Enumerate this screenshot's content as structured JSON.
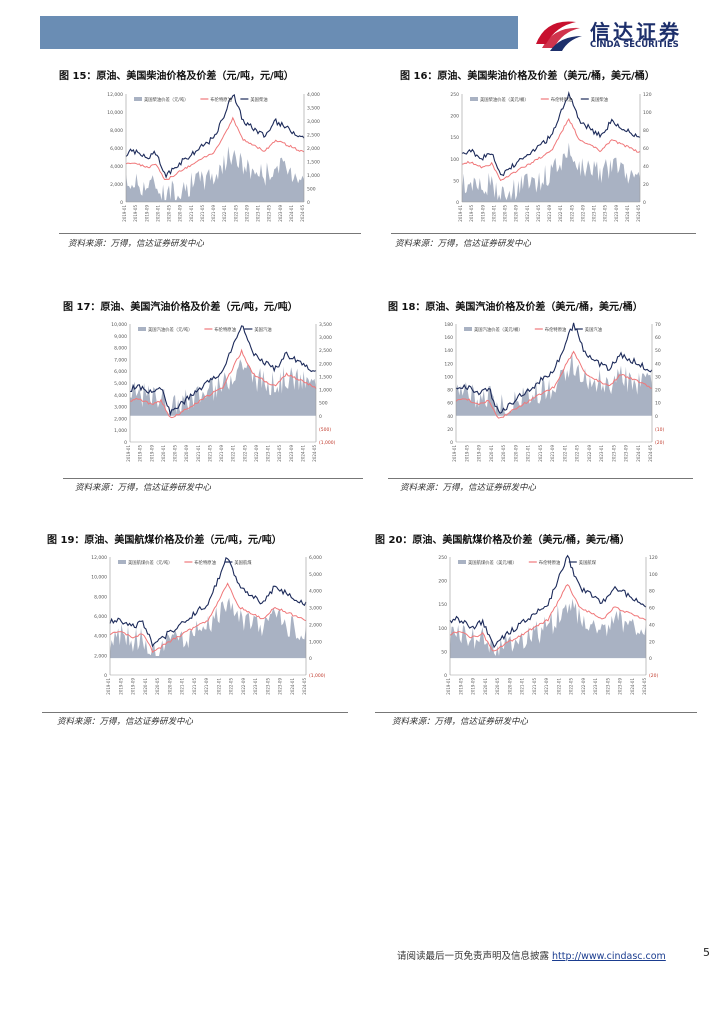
{
  "logo": {
    "cn": "信达证券",
    "en": "CINDA SECURITIES"
  },
  "figures": [
    {
      "title": "图 15：原油、美国柴油价格及价差（元/吨，元/吨）",
      "source": "资料来源：万得，信达证券研发中心",
      "chart_data": {
        "type": "area+line",
        "series": [
          {
            "name": "美国柴油价差（元/吨）"
          },
          {
            "name": "布伦特原油"
          },
          {
            "name": "美国柴油"
          }
        ],
        "y_left": [
          "12,000",
          "10,000",
          "8,000",
          "6,000",
          "4,000",
          "2,000",
          "0"
        ],
        "y_right": [
          "4,000",
          "3,500",
          "3,000",
          "2,500",
          "2,000",
          "1,500",
          "1,000",
          "500",
          "0"
        ],
        "x_ticks": [
          "2019-01",
          "2019-05",
          "2019-09",
          "2020-01",
          "2020-05",
          "2020-09",
          "2021-01",
          "2021-05",
          "2021-09",
          "2022-01",
          "2022-05",
          "2022-09",
          "2023-01",
          "2023-05",
          "2023-09",
          "2024-01",
          "2024-05"
        ]
      }
    },
    {
      "title": "图 16：原油、美国柴油价格及价差（美元/桶，美元/桶）",
      "source": "资料来源：万得，信达证券研发中心",
      "chart_data": {
        "type": "area+line",
        "series": [
          {
            "name": "美国柴油价差（美元/桶）"
          },
          {
            "name": "布伦特原油"
          },
          {
            "name": "美国柴油"
          }
        ],
        "y_left": [
          "250",
          "200",
          "150",
          "100",
          "50",
          "0"
        ],
        "y_right": [
          "120",
          "100",
          "80",
          "60",
          "40",
          "20",
          "0"
        ],
        "x_ticks": [
          "2019-01",
          "2019-05",
          "2019-09",
          "2020-01",
          "2020-05",
          "2020-09",
          "2021-01",
          "2021-05",
          "2021-09",
          "2022-01",
          "2022-05",
          "2022-09",
          "2023-01",
          "2023-05",
          "2023-09",
          "2024-01",
          "2024-05"
        ]
      }
    },
    {
      "title": "图 17：原油、美国汽油价格及价差（元/吨，元/吨）",
      "source": "资料来源：万得，信达证券研发中心",
      "chart_data": {
        "type": "area+line",
        "series": [
          {
            "name": "美国汽油价差（元/吨）"
          },
          {
            "name": "布伦特原油"
          },
          {
            "name": "美国汽油"
          }
        ],
        "y_left": [
          "10,000",
          "9,000",
          "8,000",
          "7,000",
          "6,000",
          "5,000",
          "4,000",
          "3,000",
          "2,000",
          "1,000",
          "0"
        ],
        "y_right": [
          "3,500",
          "3,000",
          "2,500",
          "2,000",
          "1,500",
          "1,000",
          "500",
          "0",
          "(500)",
          "(1,000)"
        ],
        "x_ticks": [
          "2019-01",
          "2019-05",
          "2019-09",
          "2020-01",
          "2020-05",
          "2020-09",
          "2021-01",
          "2021-05",
          "2021-09",
          "2022-01",
          "2022-05",
          "2022-09",
          "2023-01",
          "2023-05",
          "2023-09",
          "2024-01",
          "2024-05"
        ]
      }
    },
    {
      "title": "图 18：原油、美国汽油价格及价差（美元/桶，美元/桶）",
      "source": "资料来源：万得，信达证券研发中心",
      "chart_data": {
        "type": "area+line",
        "series": [
          {
            "name": "美国汽油价差（美元/桶）"
          },
          {
            "name": "布伦特原油"
          },
          {
            "name": "美国汽油"
          }
        ],
        "y_left": [
          "180",
          "160",
          "140",
          "120",
          "100",
          "80",
          "60",
          "40",
          "20",
          "0"
        ],
        "y_right": [
          "70",
          "60",
          "50",
          "40",
          "30",
          "20",
          "10",
          "0",
          "(10)",
          "(20)"
        ],
        "x_ticks": [
          "2019-01",
          "2019-05",
          "2019-09",
          "2020-01",
          "2020-05",
          "2020-09",
          "2021-01",
          "2021-05",
          "2021-09",
          "2022-01",
          "2022-05",
          "2022-09",
          "2023-01",
          "2023-05",
          "2023-09",
          "2024-01",
          "2024-05"
        ]
      }
    },
    {
      "title": "图 19：原油、美国航煤价格及价差（元/吨，元/吨）",
      "source": "资料来源：万得，信达证券研发中心",
      "chart_data": {
        "type": "area+line",
        "series": [
          {
            "name": "美国航煤价差（元/吨）"
          },
          {
            "name": "布伦特原油"
          },
          {
            "name": "美国航煤"
          }
        ],
        "y_left": [
          "12,000",
          "10,000",
          "8,000",
          "6,000",
          "4,000",
          "2,000",
          "0"
        ],
        "y_right": [
          "6,000",
          "5,000",
          "4,000",
          "3,000",
          "2,000",
          "1,000",
          "0",
          "(1,000)"
        ],
        "x_ticks": [
          "2019-01",
          "2019-05",
          "2019-09",
          "2020-01",
          "2020-05",
          "2020-09",
          "2021-01",
          "2021-05",
          "2021-09",
          "2022-01",
          "2022-05",
          "2022-09",
          "2023-01",
          "2023-05",
          "2023-09",
          "2024-01",
          "2024-05"
        ]
      }
    },
    {
      "title": "图 20：原油、美国航煤价格及价差（美元/桶，美元/桶）",
      "source": "资料来源：万得，信达证券研发中心",
      "chart_data": {
        "type": "area+line",
        "series": [
          {
            "name": "美国航煤价差（美元/桶）"
          },
          {
            "name": "布伦特原油"
          },
          {
            "name": "美国航煤"
          }
        ],
        "y_left": [
          "250",
          "200",
          "150",
          "100",
          "50",
          "0"
        ],
        "y_right": [
          "120",
          "100",
          "80",
          "60",
          "40",
          "20",
          "0",
          "(20)"
        ],
        "x_ticks": [
          "2019-01",
          "2019-05",
          "2019-09",
          "2020-01",
          "2020-05",
          "2020-09",
          "2021-01",
          "2021-05",
          "2021-09",
          "2022-01",
          "2022-05",
          "2022-09",
          "2023-01",
          "2023-05",
          "2023-09",
          "2024-01",
          "2024-05"
        ]
      }
    }
  ],
  "footer": {
    "text": "请阅读最后一页免责声明及信息披露 ",
    "link": "http://www.cindasc.com",
    "page": "5"
  },
  "colors": {
    "area": "#a9b2c3",
    "brent": "#f0787a",
    "product": "#1c2a5a",
    "header": "#6a8db4",
    "logo_red": "#c8102e",
    "logo_blue": "#1d2f6b"
  }
}
